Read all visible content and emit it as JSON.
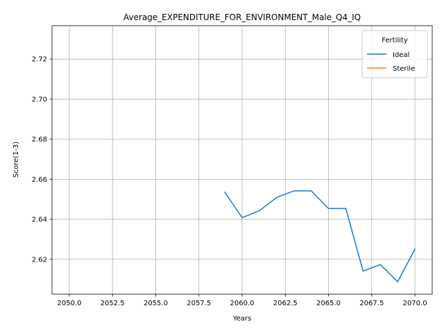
{
  "chart_data": {
    "type": "line",
    "title": "Average_EXPENDITURE_FOR_ENVIRONMENT_Male_Q4_IQ",
    "xlabel": "Years",
    "ylabel": "Score(1-3)",
    "xlim": [
      2049.0,
      2071.0
    ],
    "ylim": [
      2.6026,
      2.7367
    ],
    "xticks": [
      "2050.0",
      "2052.5",
      "2055.0",
      "2057.5",
      "2060.0",
      "2062.5",
      "2065.0",
      "2067.5",
      "2070.0"
    ],
    "yticks": [
      "2.62",
      "2.64",
      "2.66",
      "2.68",
      "2.70",
      "2.72"
    ],
    "grid": true,
    "legend": {
      "title": "Fertility",
      "placement": "top-right"
    },
    "series": [
      {
        "name": "Ideal",
        "color": "#1f77b4",
        "x": [
          2059,
          2060,
          2061,
          2062,
          2063,
          2064,
          2065,
          2066,
          2067,
          2068,
          2069,
          2070
        ],
        "y": [
          2.6535,
          2.6408,
          2.6443,
          2.6509,
          2.6542,
          2.6542,
          2.6454,
          2.6454,
          2.6141,
          2.6174,
          2.6088,
          2.6251
        ]
      },
      {
        "name": "Sterile",
        "color": "#ff7f0e",
        "x": [],
        "y": []
      }
    ]
  }
}
